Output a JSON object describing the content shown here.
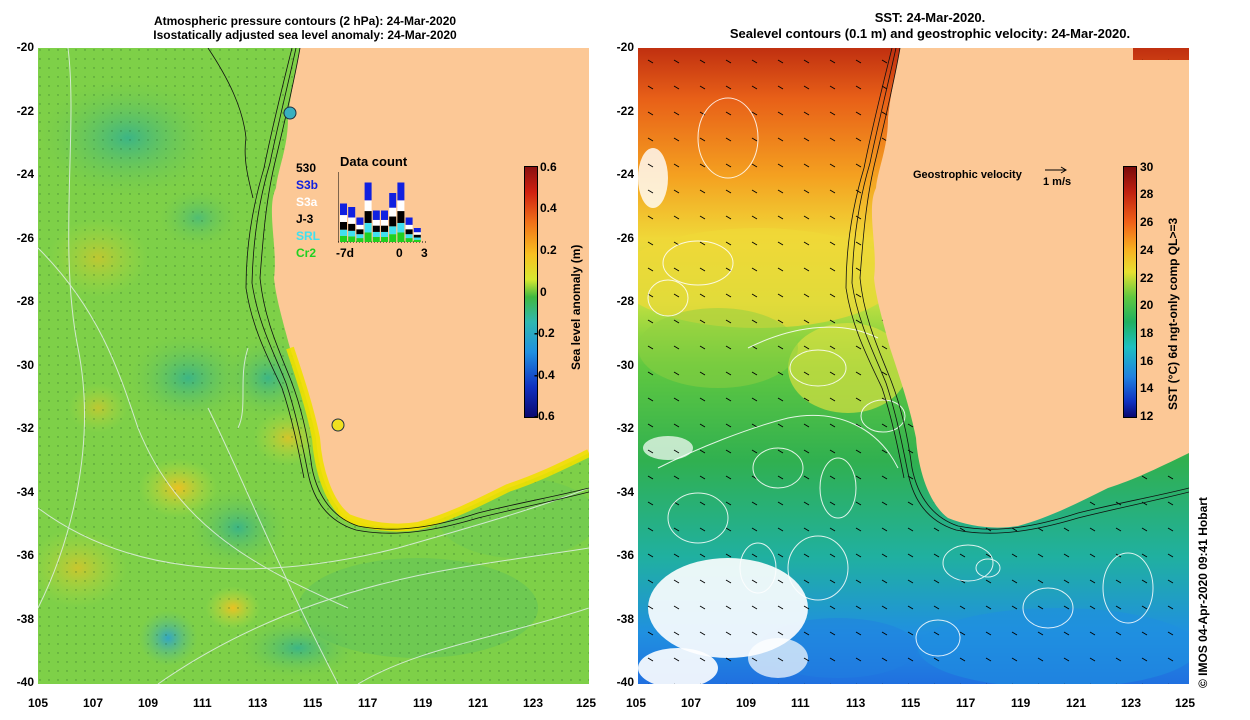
{
  "left_panel": {
    "title_line1": "Atmospheric pressure contours (2 hPa): 24-Mar-2020",
    "title_line2": "Isostatically adjusted sea level anomaly: 24-Mar-2020",
    "colorbar": {
      "label": "Sea level anomaly (m)",
      "ticks": [
        "0.6",
        "0.4",
        "0.2",
        "0",
        "-0.2",
        "-0.4",
        "-0.6"
      ],
      "range": [
        -0.6,
        0.6
      ]
    },
    "data_count": {
      "title": "Data count",
      "max_label": "530",
      "sources": [
        {
          "name": "S3b",
          "color": "#1020e0"
        },
        {
          "name": "S3a",
          "color": "#ffffff"
        },
        {
          "name": "J-3",
          "color": "#000000"
        },
        {
          "name": "SRL",
          "color": "#40e0f0"
        },
        {
          "name": "Cr2",
          "color": "#20d020"
        }
      ],
      "axis_labels": [
        "-7d",
        "0",
        "3"
      ],
      "bar_fractions": [
        0.55,
        0.5,
        0.35,
        0.85,
        0.45,
        0.45,
        0.7,
        0.85,
        0.35,
        0.2
      ]
    }
  },
  "right_panel": {
    "title_line1": "SST: 24-Mar-2020.",
    "title_line2": "Sealevel contours (0.1 m) and geostrophic velocity: 24-Mar-2020.",
    "velocity_key": {
      "label": "Geostrophic velocity",
      "unit": "1 m/s"
    },
    "colorbar": {
      "label": "SST (°C) 6d ngt-only comp QL>=3",
      "ticks": [
        "30",
        "28",
        "26",
        "24",
        "22",
        "20",
        "18",
        "16",
        "14",
        "12"
      ],
      "range": [
        12,
        30
      ]
    }
  },
  "axes": {
    "y_ticks": [
      "-20",
      "-22",
      "-24",
      "-26",
      "-28",
      "-30",
      "-32",
      "-34",
      "-36",
      "-38",
      "-40"
    ],
    "x_ticks": [
      "105",
      "107",
      "109",
      "111",
      "113",
      "115",
      "117",
      "119",
      "121",
      "123",
      "125"
    ]
  },
  "credit": "© IMOS 04-Apr-2020 09:41 Hobart"
}
